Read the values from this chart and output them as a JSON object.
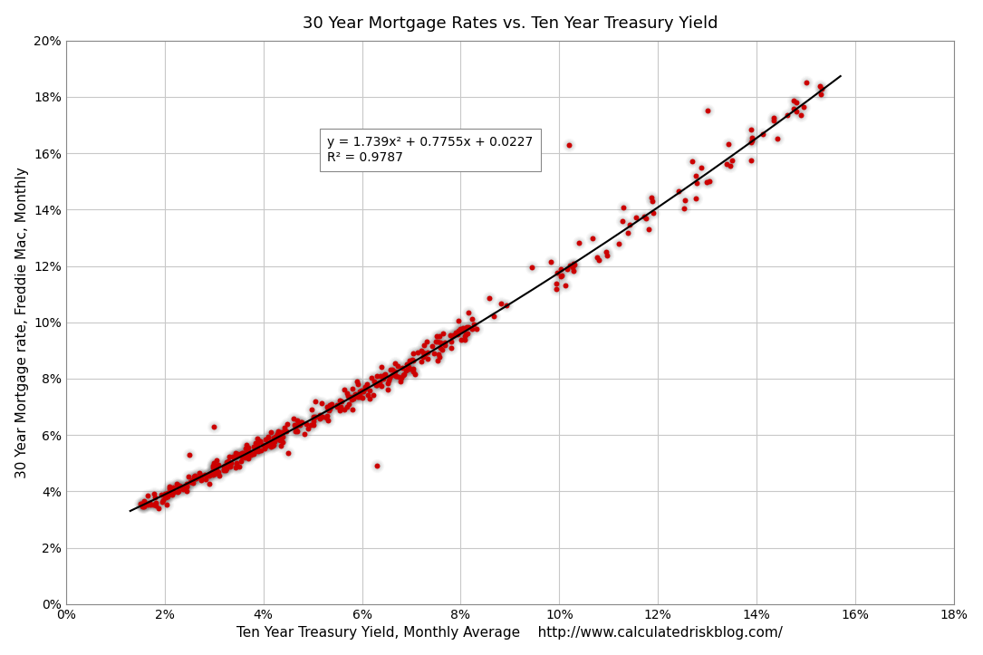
{
  "title": "30 Year Mortgage Rates vs. Ten Year Treasury Yield",
  "xlabel": "Ten Year Treasury Yield, Monthly Average",
  "xlabel_url": "http://www.calculatedriskblog.com/",
  "ylabel": "30 Year Mortgage rate, Freddie Mac, Monthly",
  "equation_text": "y = 1.739x² + 0.7755x + 0.0227",
  "r2_text": "R² = 0.9787",
  "poly_coeffs": [
    1.739,
    0.7755,
    0.0227
  ],
  "dot_color": "#cc0000",
  "line_color": "#000000",
  "background_color": "#ffffff",
  "xlim": [
    0,
    0.18
  ],
  "ylim": [
    0,
    0.2
  ],
  "xticks": [
    0.0,
    0.02,
    0.04,
    0.06,
    0.08,
    0.1,
    0.12,
    0.14,
    0.16,
    0.18
  ],
  "yticks": [
    0.0,
    0.02,
    0.04,
    0.06,
    0.08,
    0.1,
    0.12,
    0.14,
    0.16,
    0.18,
    0.2
  ]
}
